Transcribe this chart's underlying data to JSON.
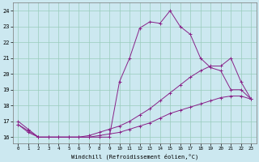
{
  "xlabel": "Windchill (Refroidissement éolien,°C)",
  "background_color": "#cce8f0",
  "grid_color": "#99ccbb",
  "line_color": "#882288",
  "x_ticks": [
    0,
    1,
    2,
    3,
    4,
    5,
    6,
    7,
    8,
    9,
    10,
    11,
    12,
    13,
    14,
    15,
    16,
    17,
    18,
    19,
    20,
    21,
    22,
    23
  ],
  "y_ticks": [
    16,
    17,
    18,
    19,
    20,
    21,
    22,
    23,
    24
  ],
  "ylim": [
    15.6,
    24.5
  ],
  "xlim": [
    -0.5,
    23.5
  ],
  "line1_x": [
    0,
    1,
    2,
    3,
    4,
    5,
    6,
    7,
    8,
    9,
    10,
    11,
    12,
    13,
    14,
    15,
    16,
    17,
    18,
    19,
    20,
    21,
    22,
    23
  ],
  "line1_y": [
    17.0,
    16.5,
    16.0,
    16.0,
    16.0,
    16.0,
    16.0,
    16.0,
    16.0,
    16.0,
    19.5,
    21.0,
    22.9,
    23.3,
    23.2,
    24.0,
    23.0,
    22.5,
    21.0,
    20.4,
    20.2,
    19.0,
    19.0,
    18.4
  ],
  "line2_x": [
    0,
    1,
    2,
    3,
    4,
    5,
    6,
    7,
    8,
    9,
    10,
    11,
    12,
    13,
    14,
    15,
    16,
    17,
    18,
    19,
    20,
    21,
    22,
    23
  ],
  "line2_y": [
    16.8,
    16.4,
    16.0,
    16.0,
    16.0,
    16.0,
    16.0,
    16.1,
    16.3,
    16.5,
    16.7,
    17.0,
    17.4,
    17.8,
    18.3,
    18.8,
    19.3,
    19.8,
    20.2,
    20.5,
    20.5,
    21.0,
    19.5,
    18.4
  ],
  "line3_x": [
    0,
    1,
    2,
    3,
    4,
    5,
    6,
    7,
    8,
    9,
    10,
    11,
    12,
    13,
    14,
    15,
    16,
    17,
    18,
    19,
    20,
    21,
    22,
    23
  ],
  "line3_y": [
    16.8,
    16.3,
    16.0,
    16.0,
    16.0,
    16.0,
    16.0,
    16.0,
    16.1,
    16.2,
    16.3,
    16.5,
    16.7,
    16.9,
    17.2,
    17.5,
    17.7,
    17.9,
    18.1,
    18.3,
    18.5,
    18.6,
    18.6,
    18.4
  ]
}
